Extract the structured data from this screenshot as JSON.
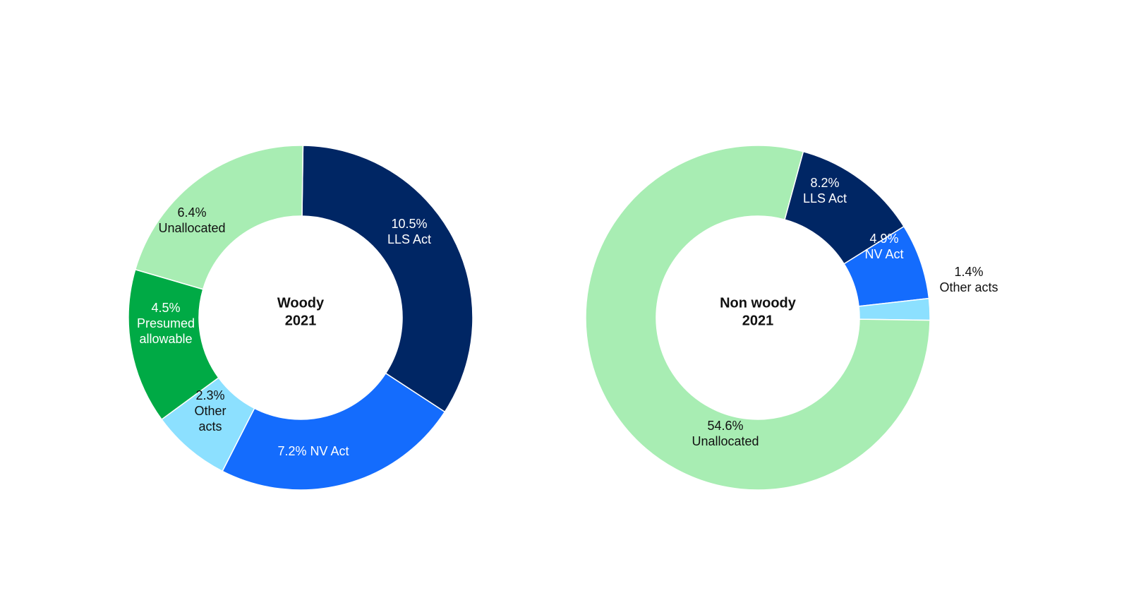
{
  "chart_data": [
    {
      "type": "pie",
      "title": [
        "Woody",
        "2021"
      ],
      "slices": [
        {
          "value": 10.5,
          "label": [
            "10.5%",
            "LLS Act"
          ],
          "color": "#002664",
          "text_color": "#ffffff"
        },
        {
          "value": 7.2,
          "label": [
            "7.2% NV Act"
          ],
          "color": "#146cfd",
          "text_color": "#ffffff"
        },
        {
          "value": 2.3,
          "label": [
            "2.3%",
            "Other",
            "acts"
          ],
          "color": "#8ce0ff",
          "text_color": "#111111"
        },
        {
          "value": 4.5,
          "label": [
            "4.5%",
            "Presumed",
            "allowable"
          ],
          "color": "#00aa45",
          "text_color": "#ffffff"
        },
        {
          "value": 6.4,
          "label": [
            "6.4%",
            "Unallocated"
          ],
          "color": "#a8edb3",
          "text_color": "#111111"
        }
      ]
    },
    {
      "type": "pie",
      "title": [
        "Non woody",
        "2021"
      ],
      "slices": [
        {
          "value": 8.2,
          "label": [
            "8.2%",
            "LLS Act"
          ],
          "color": "#002664",
          "text_color": "#ffffff"
        },
        {
          "value": 4.9,
          "label": [
            "4.9%",
            "NV Act"
          ],
          "color": "#146cfd",
          "text_color": "#ffffff"
        },
        {
          "value": 1.4,
          "label": [
            "1.4%",
            "Other acts"
          ],
          "color": "#8ce0ff",
          "text_color": "#111111"
        },
        {
          "value": 54.6,
          "label": [
            "54.6%",
            "Unallocated"
          ],
          "color": "#a8edb3",
          "text_color": "#111111"
        }
      ]
    }
  ]
}
